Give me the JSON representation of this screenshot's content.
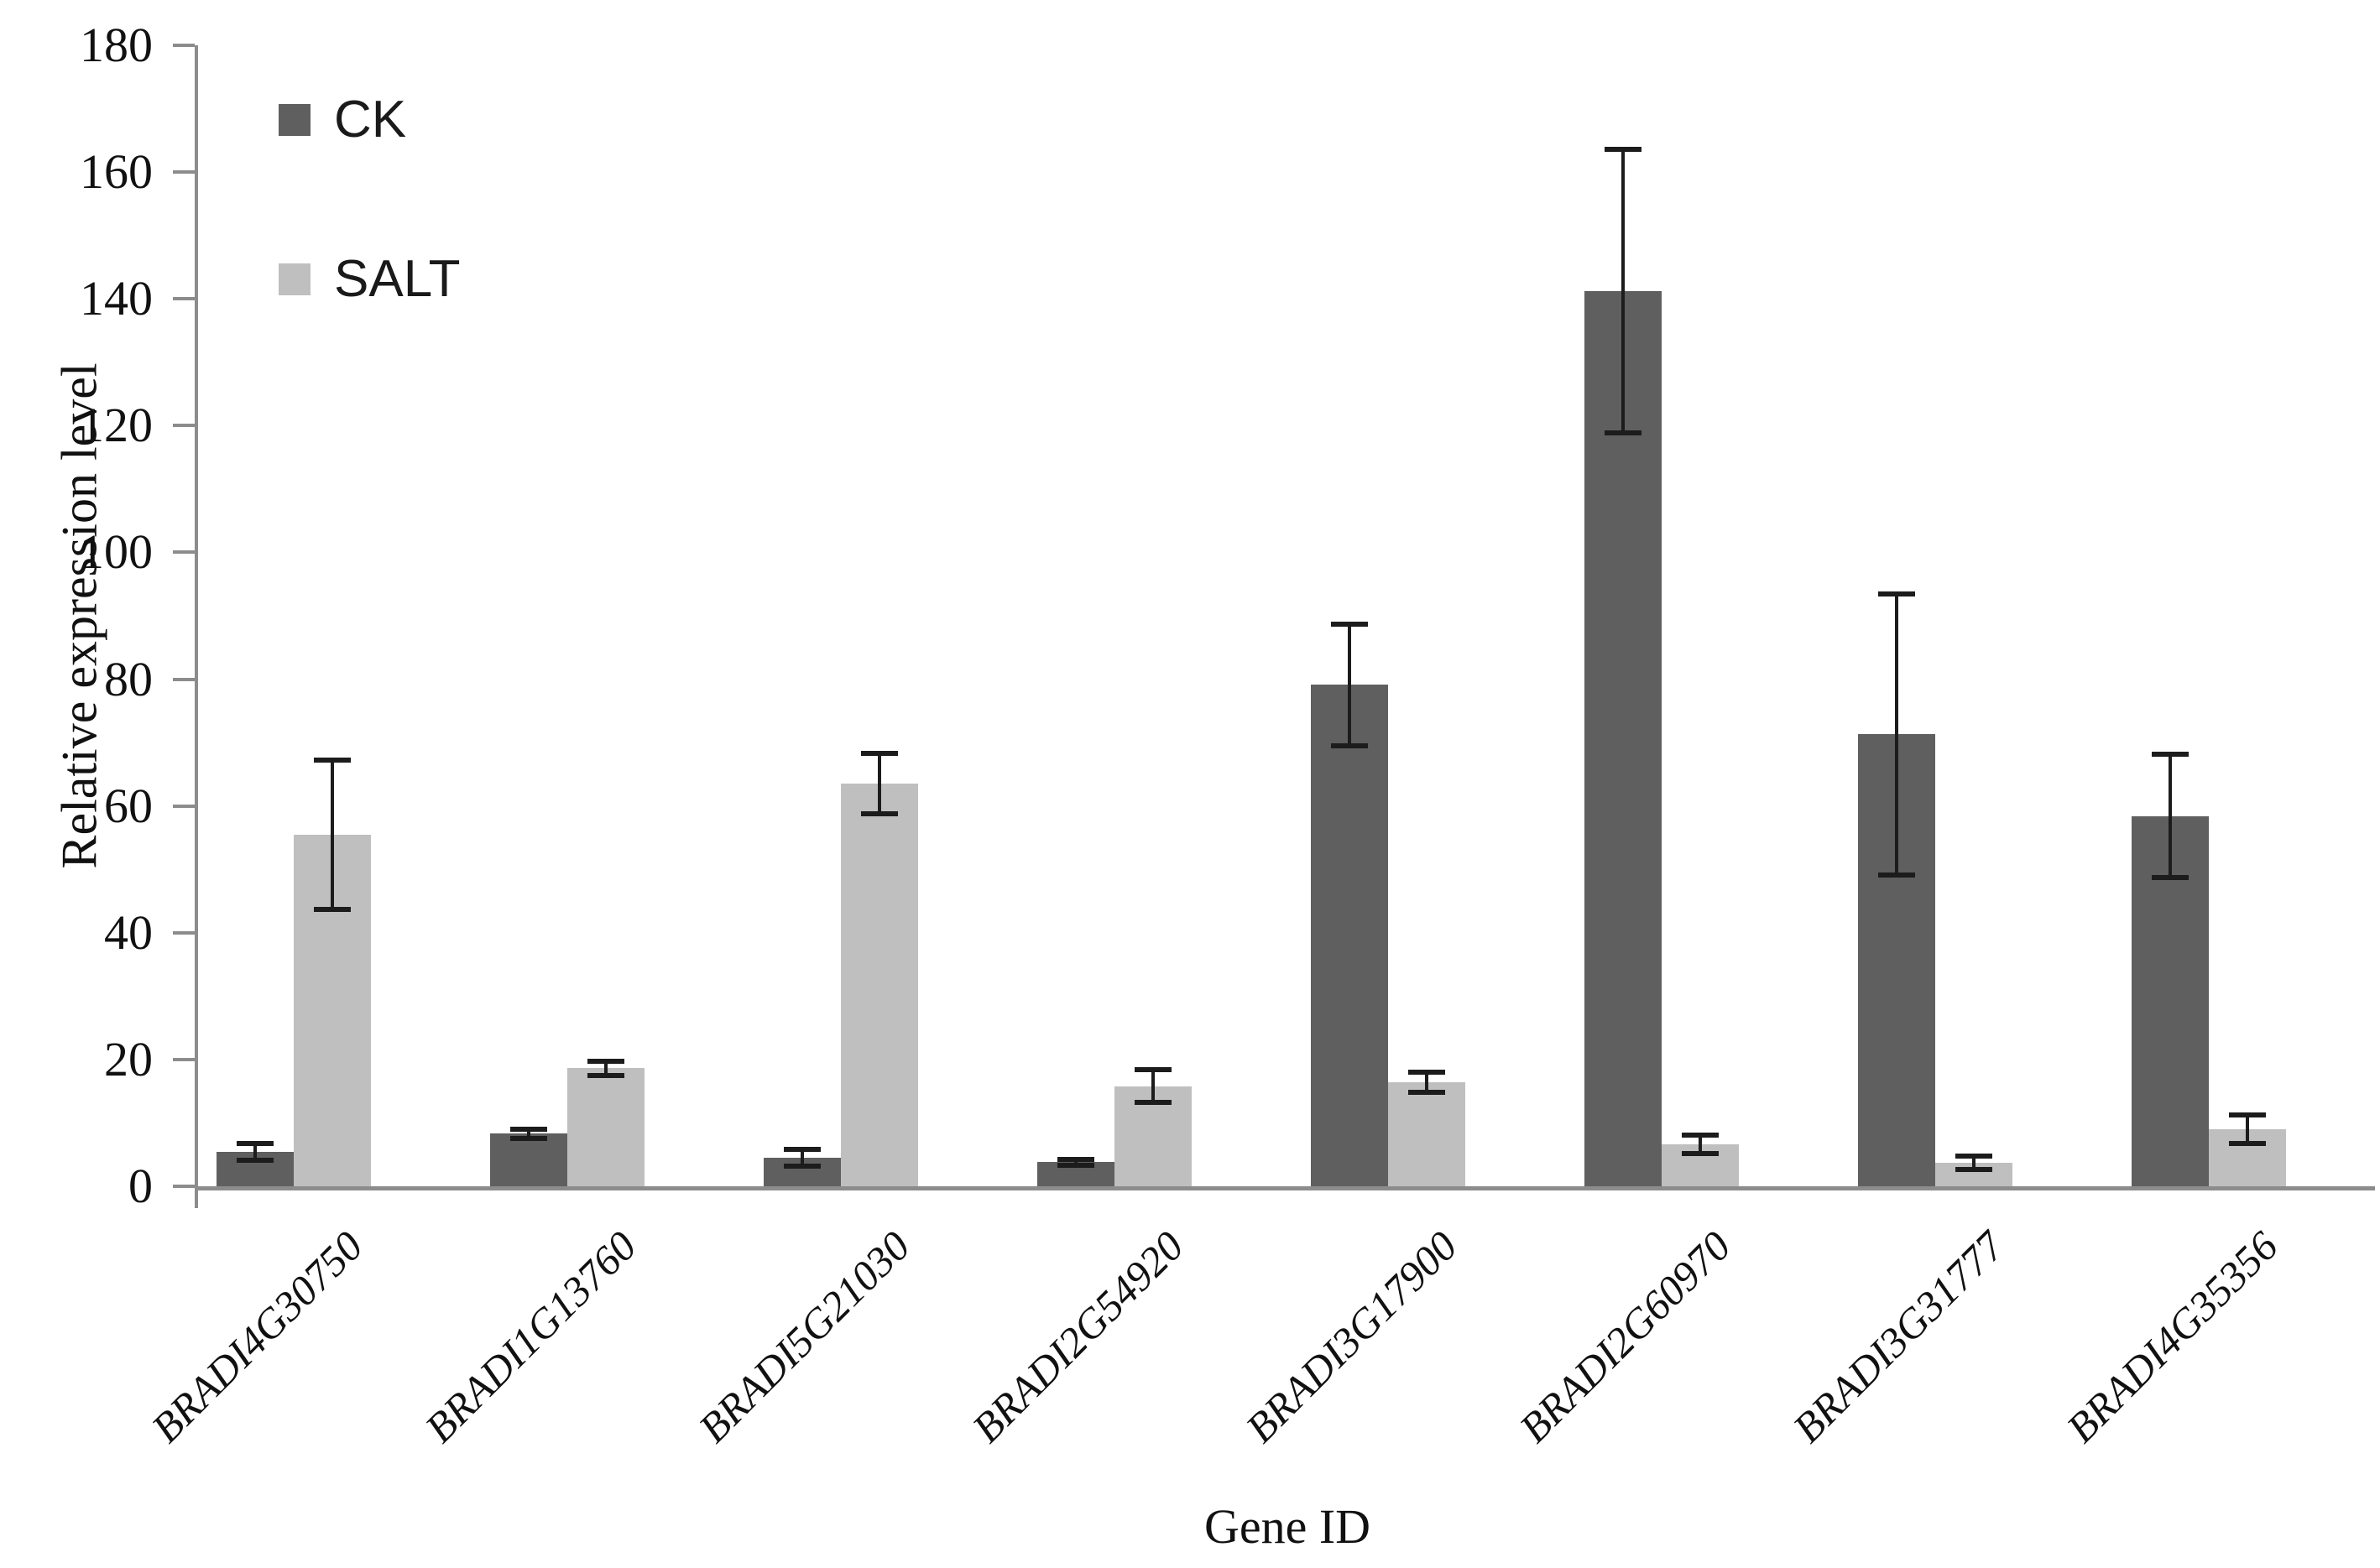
{
  "figure": {
    "background": "#ffffff"
  },
  "chart_data": {
    "type": "bar",
    "title": "",
    "xlabel": "Gene ID",
    "ylabel": "Relative expression level",
    "ylim": [
      0,
      180
    ],
    "ytick_interval": 20,
    "yticks": [
      0,
      20,
      40,
      60,
      80,
      100,
      120,
      140,
      160,
      180
    ],
    "grid": false,
    "legend_position": "upper-left-inside",
    "bar_colors": {
      "CK": "#5f5f5f",
      "SALT": "#bfbfbf"
    },
    "error_bar_color": "#1c1c1c",
    "axis_color": "#8c8c8c",
    "categories": [
      "BRADI4G30750",
      "BRADI1G13760",
      "BRADI5G21030",
      "BRADI2G54920",
      "BRADI3G17900",
      "BRADI2G60970",
      "BRADI3G31777",
      "BRADI4G35356"
    ],
    "series": [
      {
        "name": "CK",
        "values": [
          5.4,
          8.3,
          4.5,
          3.8,
          79.1,
          141.2,
          71.3,
          58.4
        ],
        "errors": [
          1.3,
          0.7,
          1.3,
          0.5,
          9.6,
          22.4,
          22.2,
          9.7
        ]
      },
      {
        "name": "SALT",
        "values": [
          55.5,
          18.6,
          63.5,
          15.8,
          16.4,
          6.6,
          3.7,
          9.0
        ],
        "errors": [
          11.8,
          1.1,
          4.8,
          2.6,
          1.6,
          1.5,
          1.1,
          2.2
        ]
      }
    ]
  }
}
